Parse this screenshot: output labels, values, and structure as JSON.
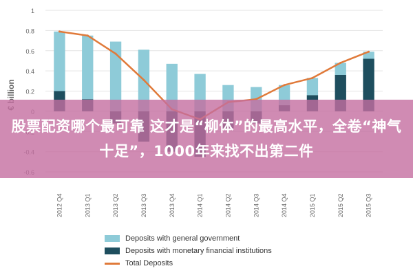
{
  "overlay": {
    "caption": "股票配资哪个最可靠 这才是“柳体”的最高水平，全卷“神气十足”，1000年来找不出第二件"
  },
  "colors": {
    "general_government": "#8ecbd8",
    "mfi": "#1e4e5e",
    "total": "#e07a3a",
    "grid": "#e3e3e3",
    "axis_text": "#666666"
  },
  "chart_data": {
    "type": "bar",
    "ylabel": "€ billion",
    "ylim": [
      -0.6,
      1
    ],
    "yticks": [
      -0.6,
      -0.4,
      -0.2,
      0,
      0.2,
      0.4,
      0.6,
      0.8,
      1
    ],
    "ytick_labels": [
      "-0.6",
      "-0.4",
      "-0.2",
      "0",
      "0.2",
      "0.4",
      "0.6",
      "0.8",
      "1"
    ],
    "categories": [
      "2012 Q4",
      "2013 Q1",
      "2013 Q2",
      "2013 Q3",
      "2013 Q4",
      "2014 Q1",
      "2014 Q2",
      "2014 Q3",
      "2014 Q4",
      "2015 Q1",
      "2015 Q2",
      "2015 Q3"
    ],
    "series": [
      {
        "name": "Deposits with general government",
        "kind": "bar",
        "colorKey": "general_government",
        "values": [
          0.59,
          0.63,
          0.69,
          0.61,
          0.47,
          0.37,
          0.26,
          0.24,
          0.2,
          0.17,
          0.12,
          0.07
        ]
      },
      {
        "name": "Deposits with monetary financial institutions",
        "kind": "bar",
        "colorKey": "mfi",
        "values": [
          0.2,
          0.12,
          -0.12,
          -0.3,
          -0.4,
          -0.45,
          -0.17,
          -0.12,
          0.06,
          0.16,
          0.36,
          0.52
        ]
      },
      {
        "name": "Total Deposits",
        "kind": "line",
        "colorKey": "total",
        "values": [
          0.79,
          0.75,
          0.57,
          0.31,
          0.02,
          -0.08,
          0.09,
          0.12,
          0.26,
          0.33,
          0.48,
          0.59
        ]
      }
    ],
    "legend_position": "bottom"
  }
}
